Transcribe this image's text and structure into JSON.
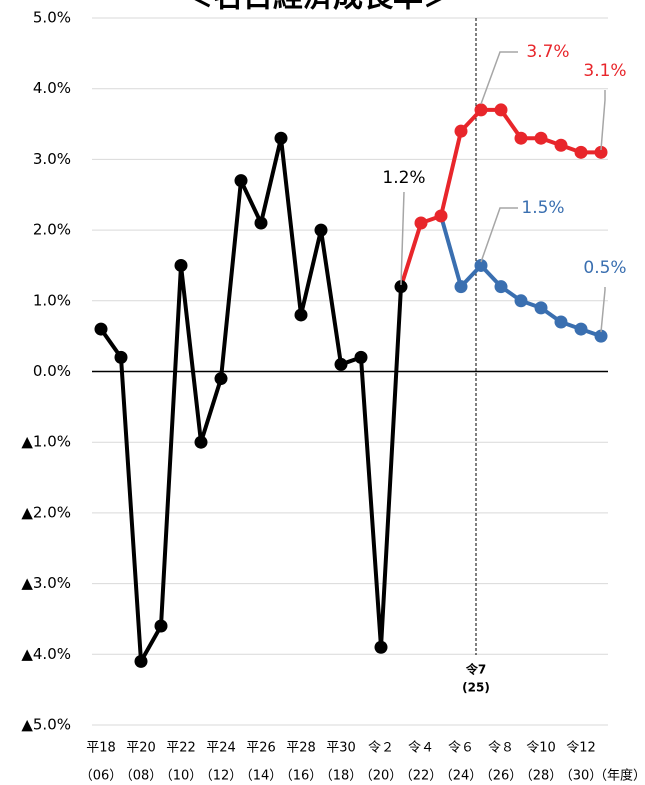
{
  "chart_data": {
    "type": "line",
    "title": "＜名目経済成長率＞",
    "categories": [
      "平18",
      null,
      "平20",
      null,
      "平22",
      null,
      "平24",
      null,
      "平26",
      null,
      "平28",
      null,
      "平30",
      null,
      "令２",
      null,
      "令４",
      null,
      "令６",
      null,
      "令８",
      null,
      "令10",
      null,
      "令12",
      null
    ],
    "category_years": [
      "（06）",
      null,
      "（08）",
      null,
      "（10）",
      null,
      "（12）",
      null,
      "（14）",
      null,
      "（16）",
      null,
      "（18）",
      null,
      "（20）",
      null,
      "（22）",
      null,
      "（24）",
      null,
      "（26）",
      null,
      "（28）",
      null,
      "（30）",
      null
    ],
    "x_label": "（年度）",
    "ylim": [
      -5,
      5
    ],
    "yticks": [
      {
        "value": 5,
        "label": "5.0%"
      },
      {
        "value": 4,
        "label": "4.0%"
      },
      {
        "value": 3,
        "label": "3.0%"
      },
      {
        "value": 2,
        "label": "2.0%"
      },
      {
        "value": 1,
        "label": "1.0%"
      },
      {
        "value": 0,
        "label": "0.0%"
      },
      {
        "value": -1,
        "label": "▲1.0%"
      },
      {
        "value": -2,
        "label": "▲2.0%"
      },
      {
        "value": -3,
        "label": "▲3.0%"
      },
      {
        "value": -4,
        "label": "▲4.0%"
      },
      {
        "value": -5,
        "label": "▲5.0%"
      }
    ],
    "grid": true,
    "series": [
      {
        "color": "#000000",
        "values": [
          0.6,
          0.2,
          -4.1,
          -3.6,
          1.5,
          -1.0,
          -0.1,
          2.7,
          2.1,
          3.3,
          0.8,
          2.0,
          0.1,
          0.2,
          -3.9,
          1.2,
          null,
          null,
          null,
          null,
          null,
          null,
          null,
          null,
          null,
          null
        ]
      },
      {
        "color": "#3a6fb0",
        "values": [
          null,
          null,
          null,
          null,
          null,
          null,
          null,
          null,
          null,
          null,
          null,
          null,
          null,
          null,
          null,
          null,
          null,
          2.2,
          1.2,
          1.5,
          1.2,
          1.0,
          0.9,
          0.7,
          0.6,
          0.5
        ]
      },
      {
        "color": "#e8262b",
        "values": [
          null,
          null,
          null,
          null,
          null,
          null,
          null,
          null,
          null,
          null,
          null,
          null,
          null,
          null,
          null,
          1.2,
          2.1,
          2.2,
          3.4,
          3.7,
          3.7,
          3.3,
          3.3,
          3.2,
          3.1,
          3.1
        ]
      }
    ],
    "marker_line": [
      "令7",
      "(25)"
    ],
    "annotations": [
      {
        "text": "1.2%",
        "color": "#000000"
      },
      {
        "text": "3.7%",
        "color": "#e8262b"
      },
      {
        "text": "3.1%",
        "color": "#e8262b"
      },
      {
        "text": "1.5%",
        "color": "#3a6fb0"
      },
      {
        "text": "0.5%",
        "color": "#3a6fb0"
      }
    ]
  }
}
